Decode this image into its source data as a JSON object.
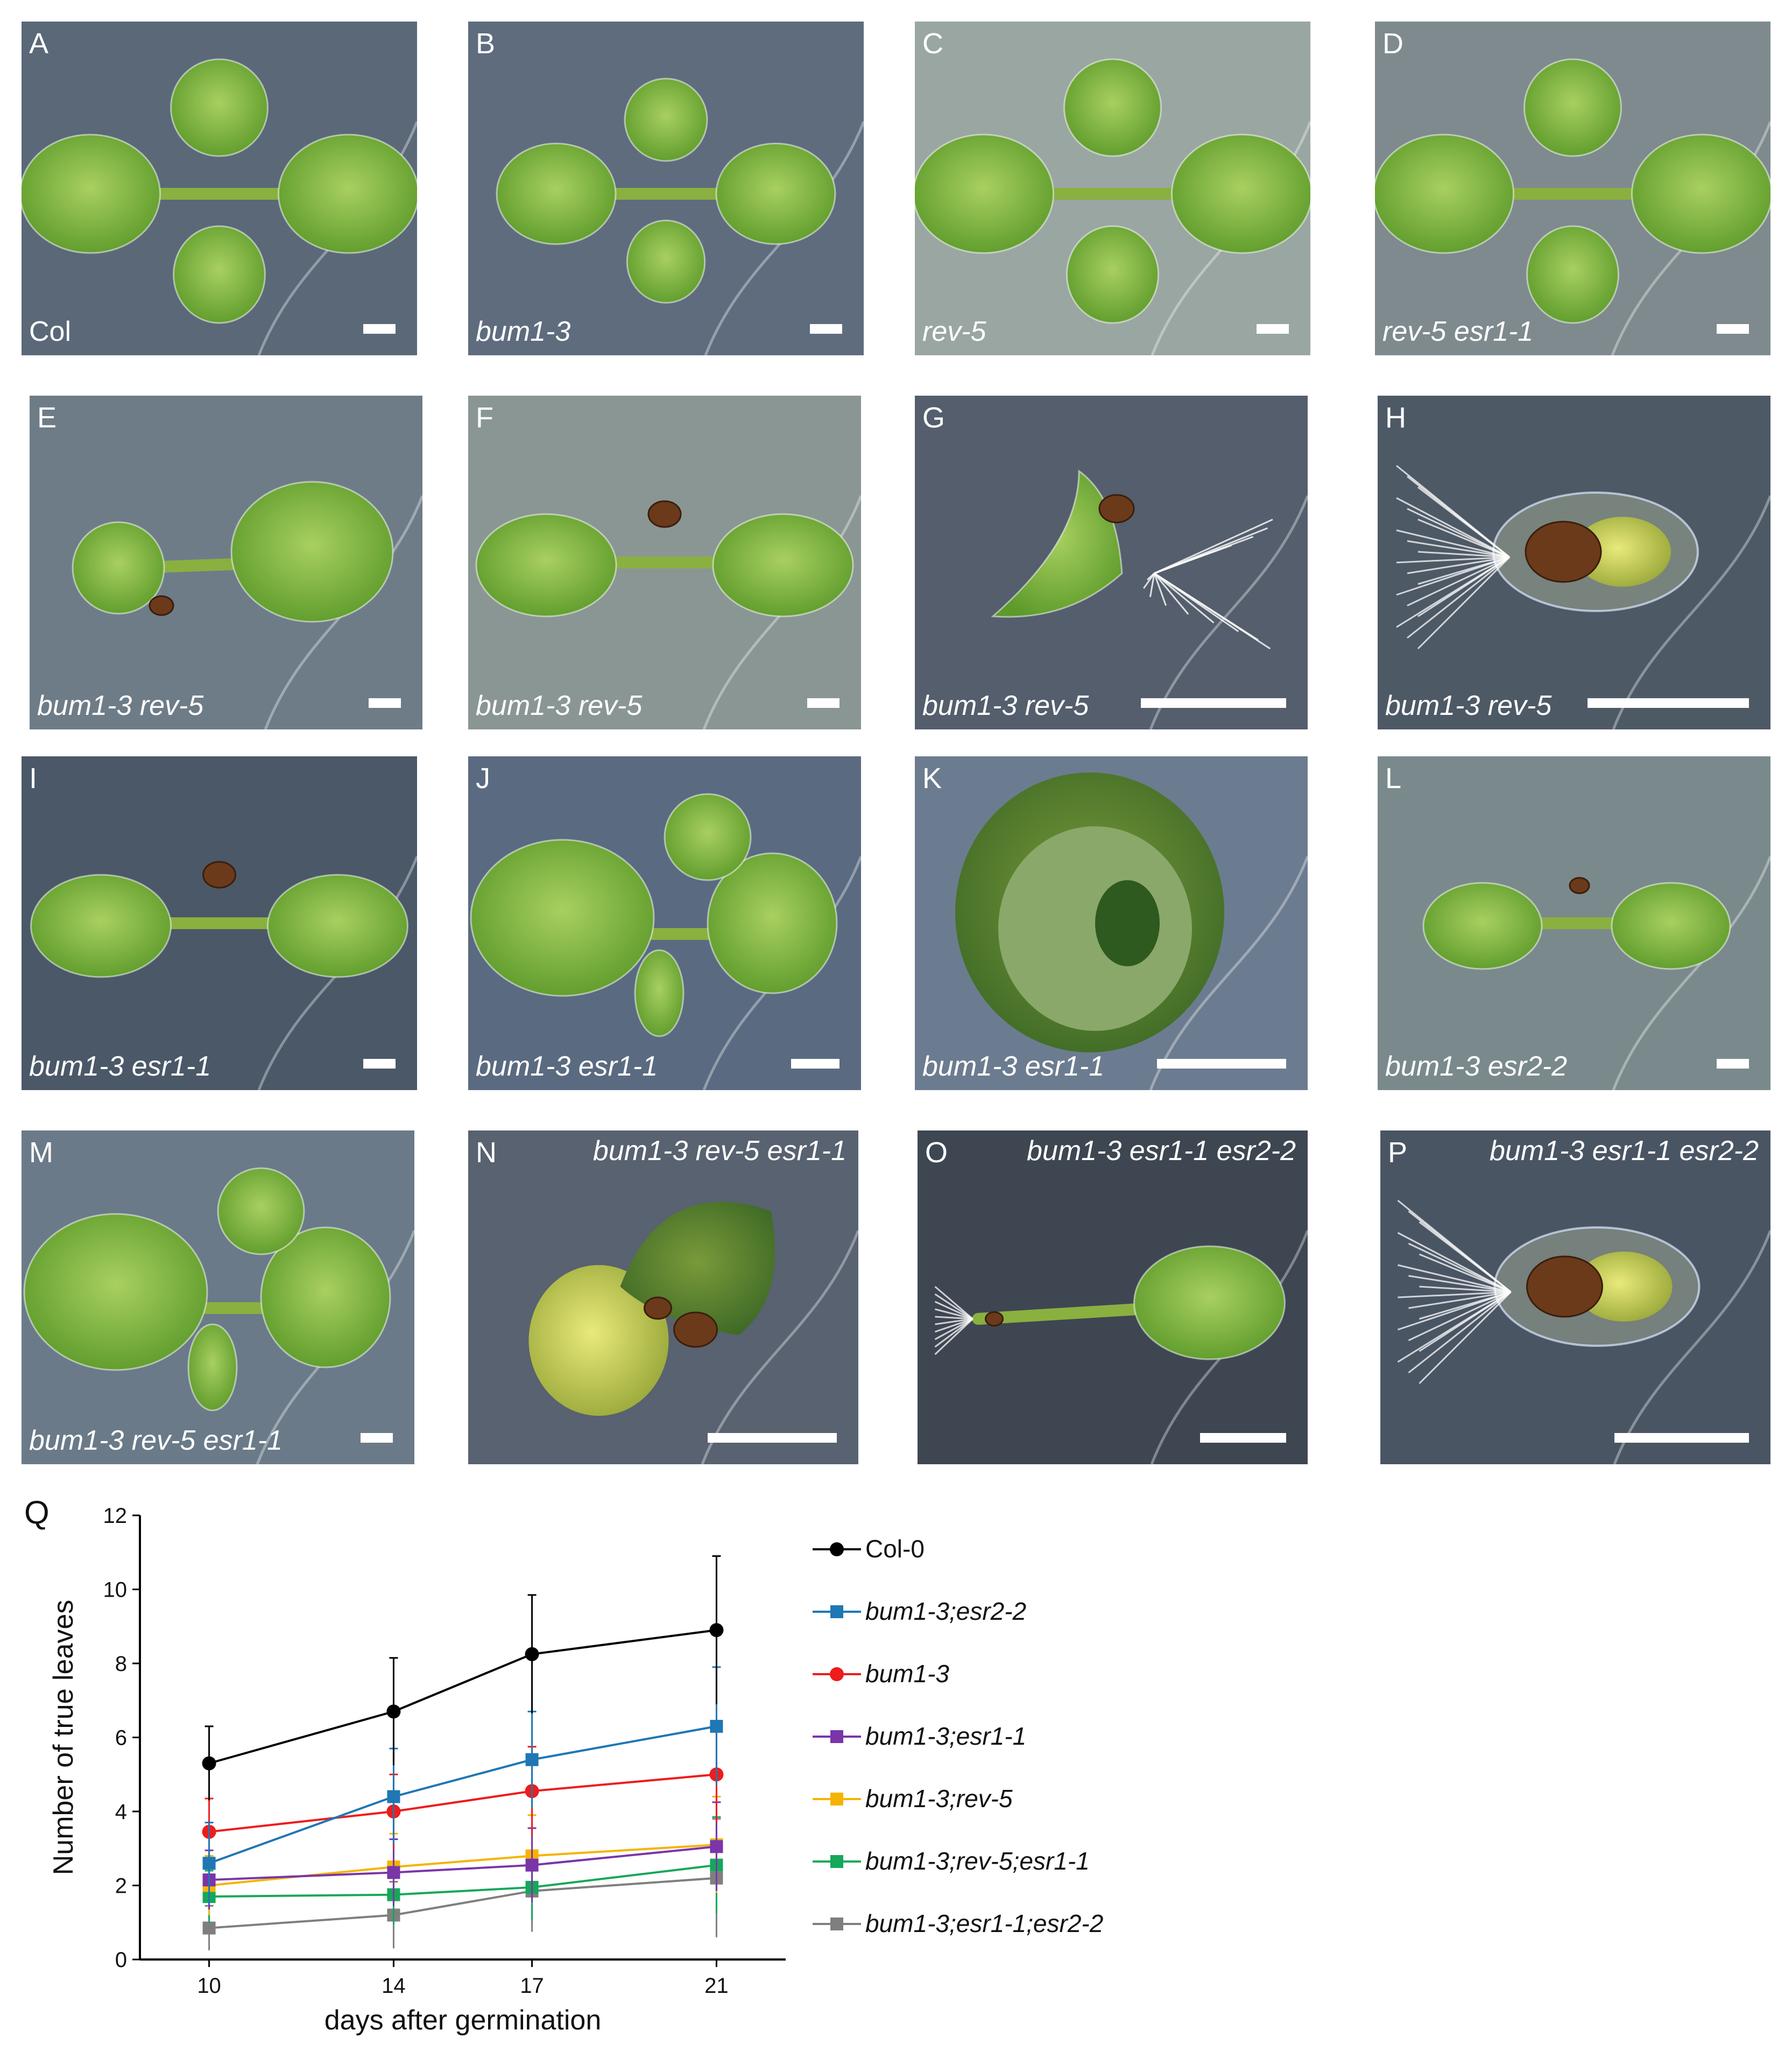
{
  "panels": [
    {
      "letter": "A",
      "label": "Col",
      "label_style": "upright",
      "bg": "#5a6878",
      "plant": "rosette4"
    },
    {
      "letter": "B",
      "label": "bum1-3",
      "label_style": "italic",
      "bg": "#5e6c7e",
      "plant": "rosette4small"
    },
    {
      "letter": "C",
      "label": "rev-5",
      "label_style": "italic",
      "bg": "#9aa6a2",
      "plant": "rosette4"
    },
    {
      "letter": "D",
      "label": "rev-5 esr1-1",
      "label_style": "italic",
      "bg": "#7e8a8e",
      "plant": "rosette4"
    },
    {
      "letter": "E",
      "label": "bum1-3 rev-5",
      "label_style": "italic",
      "bg": "#6e7c88",
      "plant": "two-unequal"
    },
    {
      "letter": "F",
      "label": "bum1-3 rev-5",
      "label_style": "italic",
      "bg": "#8a9694",
      "plant": "dumbbell"
    },
    {
      "letter": "G",
      "label": "bum1-3 rev-5",
      "label_style": "italic",
      "bg": "#545e6c",
      "plant": "fused"
    },
    {
      "letter": "H",
      "label": "bum1-3 rev-5",
      "label_style": "italic",
      "bg": "#4e5966",
      "plant": "seed"
    },
    {
      "letter": "I",
      "label": "bum1-3 esr1-1",
      "label_style": "italic",
      "bg": "#4a5868",
      "plant": "dumbbell"
    },
    {
      "letter": "J",
      "label": "bum1-3 esr1-1",
      "label_style": "italic",
      "bg": "#5a6a80",
      "plant": "three"
    },
    {
      "letter": "K",
      "label": "bum1-3 esr1-1",
      "label_style": "italic",
      "bg": "#6c7c90",
      "plant": "cup"
    },
    {
      "letter": "L",
      "label": "bum1-3 esr2-2",
      "label_style": "italic",
      "bg": "#7a8a8c",
      "plant": "dumbbell-small"
    },
    {
      "letter": "M",
      "label": "bum1-3 rev-5 esr1-1",
      "label_style": "italic",
      "bg": "#6a7a88",
      "plant": "three"
    },
    {
      "letter": "N",
      "label": "bum1-3 rev-5 esr1-1",
      "label_style": "italic",
      "bg": "#586270",
      "plant": "fused-yellow"
    },
    {
      "letter": "O",
      "label": "bum1-3 esr1-1 esr2-2",
      "label_style": "italic",
      "bg": "#3e4652",
      "plant": "single"
    },
    {
      "letter": "P",
      "label": "bum1-3 esr1-1 esr2-2",
      "label_style": "italic",
      "bg": "#4a5564",
      "plant": "seed"
    }
  ],
  "chart_panel_letter": "Q",
  "chart_data": {
    "type": "line",
    "xlabel": "days after germination",
    "ylabel": "Number of true leaves",
    "x": [
      10,
      14,
      17,
      21
    ],
    "ylim": [
      0,
      12
    ],
    "yticks": [
      0,
      2,
      4,
      6,
      8,
      10,
      12
    ],
    "grid": false,
    "legend_position": "right",
    "series": [
      {
        "name": "Col-0",
        "italic": false,
        "color": "#000000",
        "marker": "circle",
        "values": [
          5.3,
          6.7,
          8.25,
          8.9
        ],
        "err": [
          1.0,
          1.45,
          1.6,
          2.0
        ]
      },
      {
        "name": "bum1-3;esr2-2",
        "italic": true,
        "color": "#1f77b4",
        "marker": "square",
        "values": [
          2.6,
          4.4,
          5.4,
          6.3
        ],
        "err": [
          1.1,
          1.3,
          1.3,
          1.6
        ]
      },
      {
        "name": "bum1-3",
        "italic": true,
        "color": "#ee1c1c",
        "marker": "circle",
        "values": [
          3.45,
          4.0,
          4.55,
          5.0
        ],
        "err": [
          0.9,
          1.0,
          1.2,
          1.3
        ]
      },
      {
        "name": "bum1-3;esr1-1",
        "italic": true,
        "color": "#7a35a8",
        "marker": "square",
        "values": [
          2.15,
          2.35,
          2.55,
          3.05
        ],
        "err": [
          0.8,
          0.9,
          1.0,
          1.2
        ]
      },
      {
        "name": "bum1-3;rev-5",
        "italic": true,
        "color": "#f5b400",
        "marker": "square",
        "values": [
          2.0,
          2.5,
          2.8,
          3.1
        ],
        "err": [
          0.8,
          0.9,
          1.1,
          1.3
        ]
      },
      {
        "name": "bum1-3;rev-5;esr1-1",
        "italic": true,
        "color": "#14a85a",
        "marker": "square",
        "values": [
          1.7,
          1.75,
          1.95,
          2.55
        ],
        "err": [
          0.7,
          0.8,
          0.9,
          1.3
        ]
      },
      {
        "name": "bum1-3;esr1-1;esr2-2",
        "italic": true,
        "color": "#7f7f7f",
        "marker": "square",
        "values": [
          0.85,
          1.2,
          1.85,
          2.2
        ],
        "err": [
          0.6,
          0.9,
          1.1,
          1.6
        ]
      }
    ]
  }
}
